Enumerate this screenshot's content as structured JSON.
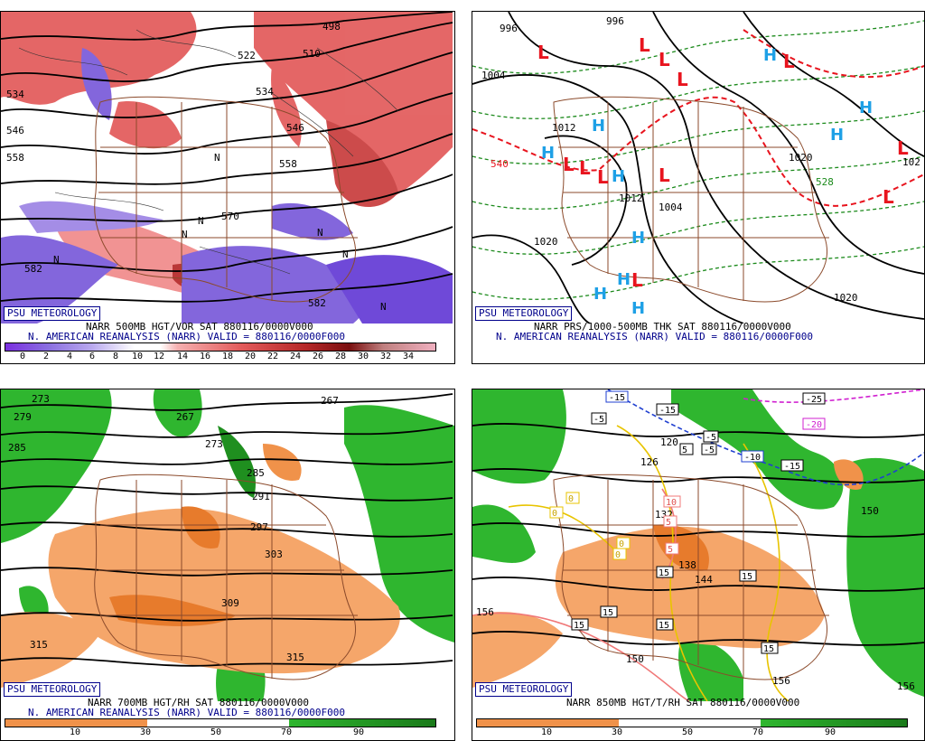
{
  "branding": "PSU METEOROLOGY",
  "source_line": "N. AMERICAN REANALYSIS (NARR) VALID = 880116/0000F000",
  "panels": [
    {
      "title": "NARR 500MB HGT/VOR SAT 880116/0000V000",
      "contour_labels": [
        "498",
        "522",
        "510",
        "534",
        "546",
        "558",
        "570",
        "582",
        "582",
        "534",
        "546",
        "558"
      ],
      "symbols": [
        "N",
        "N",
        "N",
        "N",
        "N",
        "N",
        "N"
      ],
      "colorbar": [
        "0",
        "2",
        "4",
        "6",
        "8",
        "10",
        "12",
        "14",
        "16",
        "18",
        "20",
        "22",
        "24",
        "26",
        "28",
        "30",
        "32",
        "34"
      ],
      "colors": {
        "vort_neg": "#8a6fe0",
        "vort_pos": "#e04848"
      }
    },
    {
      "title": "NARR PRS/1000-500MB THK SAT 880116/0000V000",
      "contour_labels": [
        "996",
        "996",
        "1004",
        "1012",
        "1012",
        "1004",
        "1020",
        "1020",
        "1020",
        "540",
        "528",
        "102"
      ],
      "symbols_L": [
        "L",
        "L",
        "L",
        "L",
        "L",
        "L",
        "L",
        "L",
        "L",
        "L",
        "L",
        "L"
      ],
      "symbols_H": [
        "H",
        "H",
        "H",
        "H",
        "H",
        "H",
        "H",
        "H",
        "H",
        "H"
      ],
      "colors": {
        "high": "#1ea0e6",
        "low": "#e8141e"
      }
    },
    {
      "title": "NARR 700MB HGT/RH SAT 880116/0000V000",
      "contour_labels": [
        "273",
        "267",
        "279",
        "285",
        "273",
        "267",
        "291",
        "285",
        "297",
        "303",
        "309",
        "315",
        "315"
      ],
      "colorbar": [
        "10",
        "30",
        "50",
        "70",
        "90"
      ],
      "colors": {
        "dry": "#f0924a",
        "moist": "#2fb62f"
      }
    },
    {
      "title": "NARR 850MB HGT/T/RH SAT 880116/0000V000",
      "contour_labels": [
        "120",
        "126",
        "132",
        "138",
        "144",
        "150",
        "150",
        "156",
        "156",
        "156",
        "-15",
        "-15",
        "-5",
        "-5",
        "-25",
        "-20",
        "-10",
        "-15",
        "-5",
        "5",
        "0",
        "0",
        "0",
        "0",
        "10",
        "5",
        "5",
        "15",
        "15",
        "15",
        "15",
        "15",
        "15"
      ],
      "colorbar": [
        "10",
        "30",
        "50",
        "70",
        "90"
      ],
      "colors": {
        "dry": "#f0924a",
        "moist": "#2fb62f"
      }
    }
  ]
}
